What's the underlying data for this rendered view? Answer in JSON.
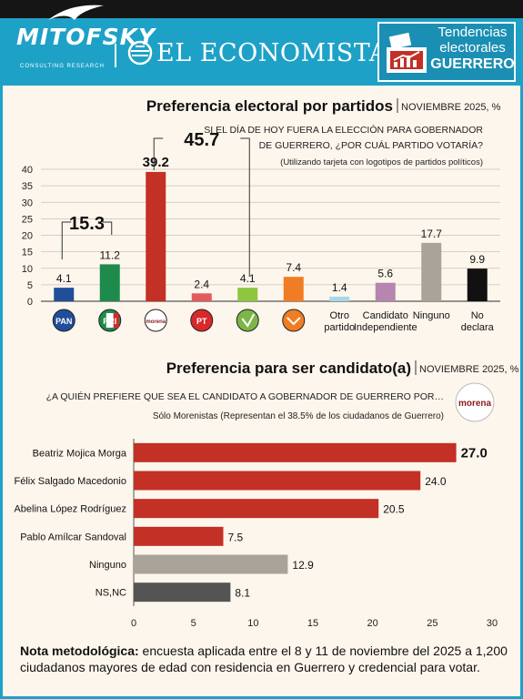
{
  "header": {
    "brand1": "MITOFSKY",
    "brand1_sub": "CONSULTING RESEARCH",
    "brand2": "EL ECONOMISTA",
    "tag_line1": "Tendencias",
    "tag_line2": "electorales",
    "tag_line3": "GUERRERO"
  },
  "colors": {
    "accent": "#1ea1c7",
    "background": "#fdf6ec",
    "morena": "#c33025"
  },
  "chart_data": [
    {
      "type": "bar",
      "title": "Preferencia electoral por partidos",
      "date": "NOVIEMBRE 2025, %",
      "question": "SI EL DÍA DE HOY FUERA LA ELECCIÓN PARA GOBERNADOR DE GUERRERO, ¿POR CUÁL PARTIDO VOTARÍA?",
      "note": "(Utilizando tarjeta con logotipos de partidos políticos)",
      "ylim": [
        0,
        40
      ],
      "yticks": [
        0,
        5,
        10,
        15,
        20,
        25,
        30,
        35,
        40
      ],
      "categories": [
        "PAN",
        "PRI",
        "morena",
        "PT",
        "PVEM",
        "MC",
        "Otro partido",
        "Candidato Independiente",
        "Ninguno",
        "No declara"
      ],
      "values": [
        4.1,
        11.2,
        39.2,
        2.4,
        4.1,
        7.4,
        1.4,
        5.6,
        17.7,
        9.9
      ],
      "colors": [
        "#1f4e9a",
        "#1e8a4b",
        "#c33025",
        "#e25c5c",
        "#8dc63f",
        "#f07d23",
        "#a9d7ea",
        "#b685b0",
        "#a9a49a",
        "#111111"
      ],
      "bracket_groups": [
        {
          "label": "15.3",
          "from": 0,
          "to": 1
        },
        {
          "label": "45.7",
          "from": 2,
          "to": 4
        }
      ],
      "logo_texts": [
        "PAN",
        "PRI",
        "morena",
        "PT",
        "",
        "",
        "",
        "",
        "",
        ""
      ]
    },
    {
      "type": "bar",
      "orientation": "horizontal",
      "title": "Preferencia para ser candidato(a)",
      "date": "NOVIEMBRE 2025, %",
      "question": "¿A QUIÉN PREFIERE QUE SEA EL CANDIDATO A GOBERNADOR DE GUERRERO POR…",
      "subtitle": "Sólo Morenistas (Representan el 38.5% de los ciudadanos de Guerrero)",
      "badge": "morena",
      "xlim": [
        0,
        30
      ],
      "xticks": [
        0,
        5,
        10,
        15,
        20,
        25,
        30
      ],
      "categories": [
        "Beatriz Mojica Morga",
        "Félix Salgado Macedonio",
        "Abelina López Rodríguez",
        "Pablo Amílcar Sandoval",
        "Ninguno",
        "NS,NC"
      ],
      "values": [
        27.0,
        24.0,
        20.5,
        7.5,
        12.9,
        8.1
      ],
      "colors": [
        "#c33025",
        "#c33025",
        "#c33025",
        "#c33025",
        "#a9a49a",
        "#545454"
      ]
    }
  ],
  "footer": {
    "label": "Nota metodológica:",
    "text": " encuesta aplicada entre el 8 y 11 de noviembre del 2025 a 1,200 ciudadanos mayores de edad con residencia en Guerrero y credencial para votar."
  }
}
